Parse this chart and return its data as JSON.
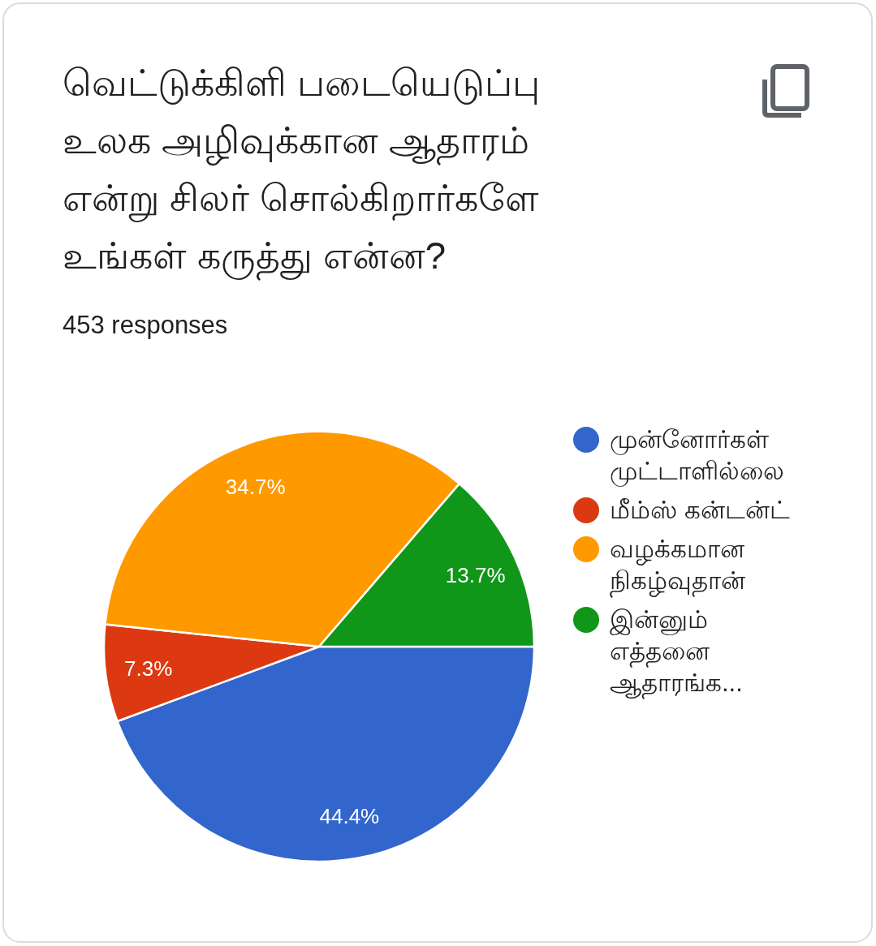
{
  "chart_data": {
    "type": "pie",
    "title": "வெட்டுக்கிளி படையெடுப்பு உலக அழிவுக்கான ஆதாரம் என்று சிலர் சொல்கிறார்களே உங்கள் கருத்து என்ன?",
    "subtitle": "453 responses",
    "categories": [
      "முன்னோர்கள் முட்டாளில்லை",
      "மீம்ஸ் கன்டன்ட்",
      "வழக்கமான நிகழ்வுதான்",
      "இன்னும் எத்தனை ஆதாரங்க..."
    ],
    "values": [
      44.4,
      7.3,
      34.7,
      13.7
    ],
    "colors": [
      "#3366cc",
      "#dc3912",
      "#ff9900",
      "#109618"
    ],
    "value_labels": [
      "44.4%",
      "7.3%",
      "34.7%",
      "13.7%"
    ],
    "legend": "right"
  }
}
